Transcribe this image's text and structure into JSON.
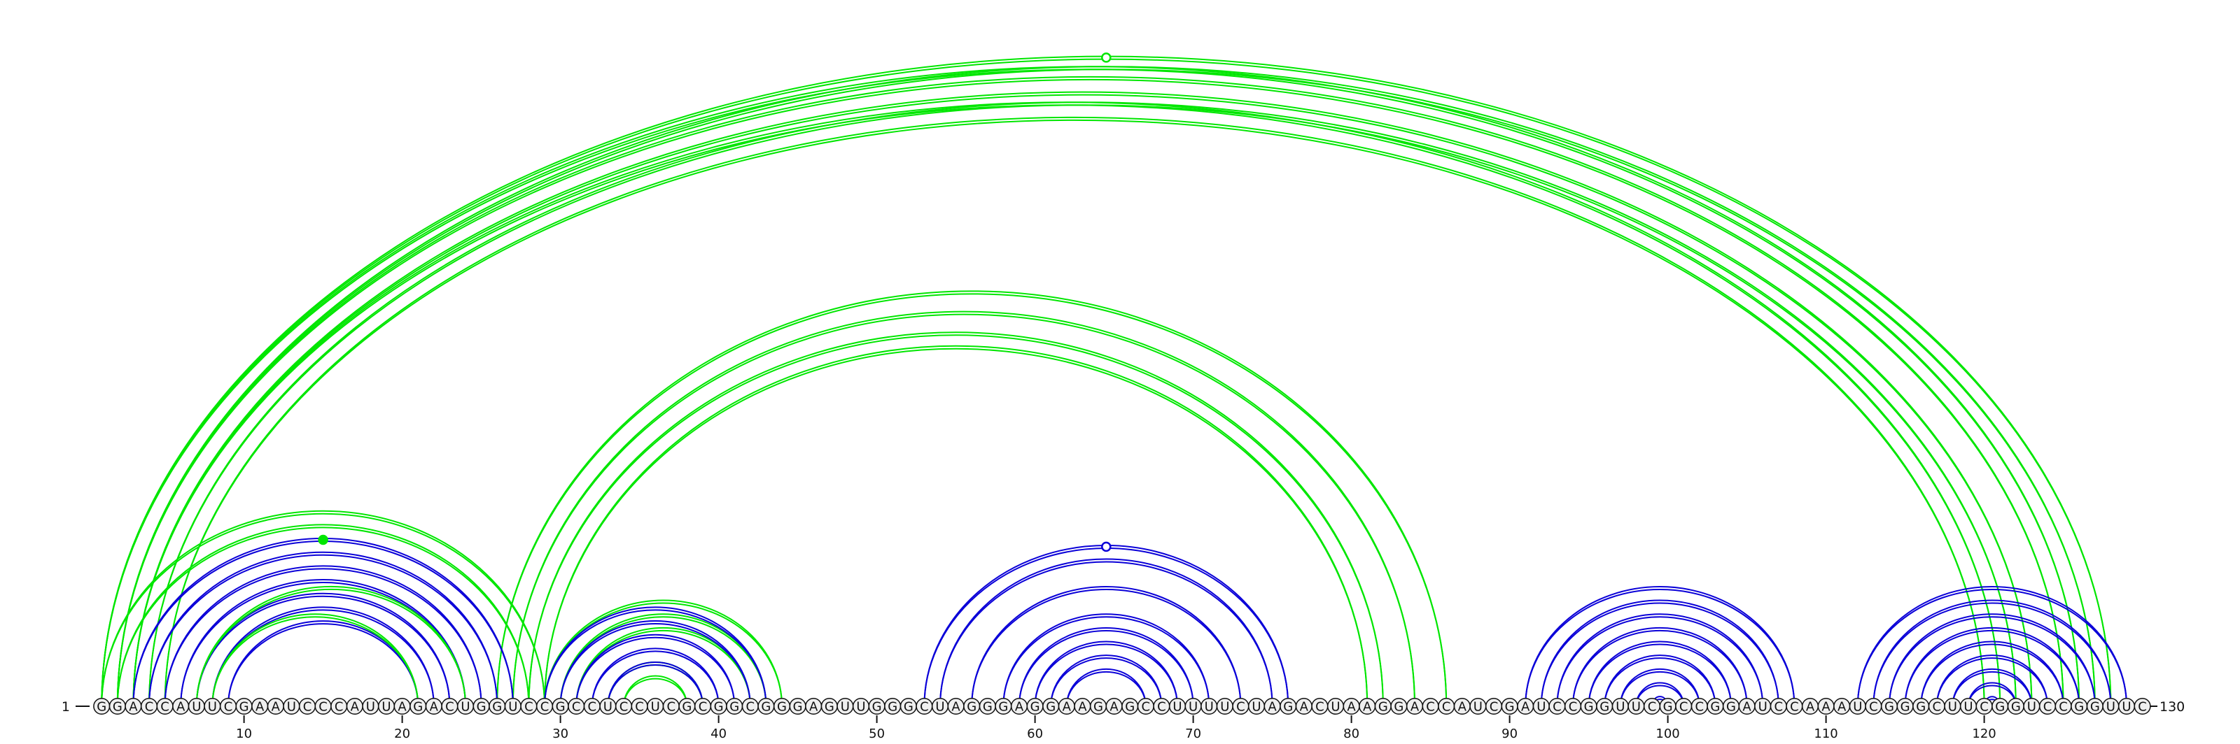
{
  "sequence": "GGACCAUUCGAAUCCCAUUAGACUGGUCCGCCUCCUCGCGGCGGGAGUUGGGCUAGGGAGGAAGAGCCUUUUCUAGACUAAGGACCAUCGAUCCGGUUCGCCGGAUCCAAAUCGGGCUUCGGUCCGGUUC",
  "start_label": "1",
  "end_label": "130",
  "ticks": [
    "10",
    "20",
    "30",
    "40",
    "50",
    "60",
    "70",
    "80",
    "90",
    "100",
    "110",
    "120"
  ],
  "colors": {
    "blue": "#0a00d8",
    "green": "#00e600",
    "text": "#111111",
    "circle_fill": "#efefef"
  },
  "pair_groups": [
    {
      "color": "green",
      "pairs": [
        [
          1,
          128
        ],
        [
          1,
          126
        ],
        [
          2,
          127
        ],
        [
          2,
          125
        ],
        [
          3,
          123
        ],
        [
          3,
          121
        ],
        [
          4,
          122
        ],
        [
          5,
          120
        ]
      ]
    },
    {
      "color": "green",
      "pairs": [
        [
          1,
          29
        ],
        [
          2,
          28
        ],
        [
          26,
          86
        ],
        [
          27,
          84
        ],
        [
          28,
          82
        ],
        [
          29,
          81
        ]
      ]
    },
    {
      "color": "blue",
      "pairs": [
        [
          3,
          27
        ],
        [
          4,
          26
        ],
        [
          5,
          25
        ],
        [
          6,
          24
        ],
        [
          7,
          23
        ],
        [
          8,
          22
        ],
        [
          9,
          21
        ]
      ]
    },
    {
      "color": "green",
      "pairs": [
        [
          7,
          24
        ],
        [
          8,
          21
        ]
      ]
    },
    {
      "color": "green",
      "pairs": [
        [
          29,
          44
        ],
        [
          30,
          43
        ],
        [
          31,
          42
        ],
        [
          33,
          39
        ],
        [
          34,
          38
        ]
      ]
    },
    {
      "color": "blue",
      "pairs": [
        [
          29,
          43
        ],
        [
          30,
          42
        ],
        [
          31,
          41
        ],
        [
          32,
          40
        ],
        [
          33,
          39
        ]
      ]
    },
    {
      "color": "blue",
      "pairs": [
        [
          53,
          76
        ],
        [
          54,
          75
        ],
        [
          56,
          73
        ],
        [
          58,
          71
        ],
        [
          59,
          70
        ],
        [
          60,
          69
        ],
        [
          61,
          68
        ],
        [
          62,
          67
        ]
      ]
    },
    {
      "color": "blue",
      "pairs": [
        [
          91,
          108
        ],
        [
          92,
          107
        ],
        [
          93,
          106
        ],
        [
          94,
          105
        ],
        [
          95,
          104
        ],
        [
          96,
          103
        ],
        [
          97,
          102
        ],
        [
          98,
          101
        ],
        [
          99,
          100
        ]
      ]
    },
    {
      "color": "blue",
      "pairs": [
        [
          112,
          129
        ],
        [
          113,
          128
        ],
        [
          114,
          127
        ],
        [
          115,
          126
        ],
        [
          116,
          125
        ],
        [
          117,
          124
        ],
        [
          118,
          123
        ],
        [
          119,
          122
        ],
        [
          120,
          121
        ]
      ]
    }
  ]
}
